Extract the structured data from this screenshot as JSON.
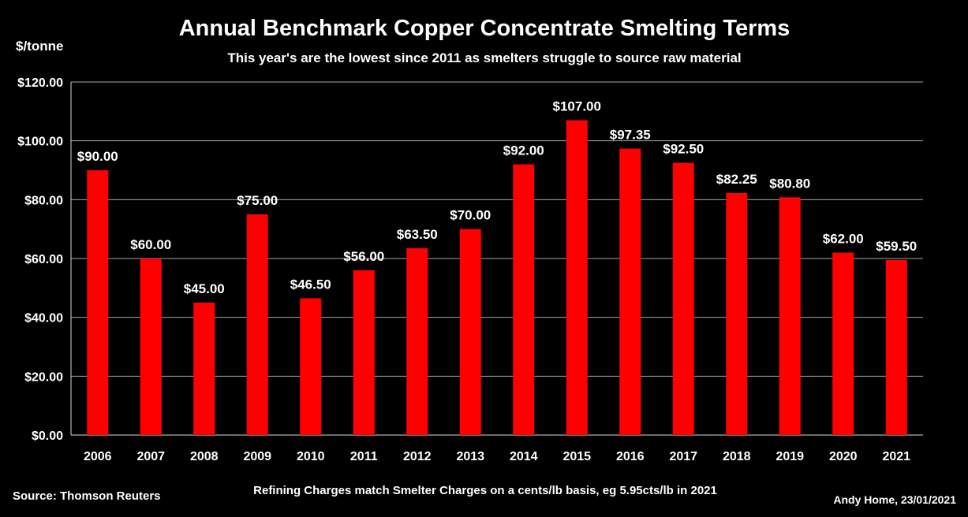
{
  "chart_data": {
    "type": "bar",
    "title": "Annual Benchmark Copper Concentrate Smelting Terms",
    "subtitle": "This year's are the lowest since 2011 as smelters struggle to source raw material",
    "ylabel": "$/tonne",
    "xlabel": "",
    "ylim": [
      0,
      120
    ],
    "ytick_step": 20,
    "ytick_labels": [
      "$0.00",
      "$20.00",
      "$40.00",
      "$60.00",
      "$80.00",
      "$100.00",
      "$120.00"
    ],
    "grid": true,
    "categories": [
      "2006",
      "2007",
      "2008",
      "2009",
      "2010",
      "2011",
      "2012",
      "2013",
      "2014",
      "2015",
      "2016",
      "2017",
      "2018",
      "2019",
      "2020",
      "2021"
    ],
    "values": [
      90.0,
      60.0,
      45.0,
      75.0,
      46.5,
      56.0,
      63.5,
      70.0,
      92.0,
      107.0,
      97.35,
      92.5,
      82.25,
      80.8,
      62.0,
      59.5
    ],
    "data_labels": [
      "$90.00",
      "$60.00",
      "$45.00",
      "$75.00",
      "$46.50",
      "$56.00",
      "$63.50",
      "$70.00",
      "$92.00",
      "$107.00",
      "$97.35",
      "$92.50",
      "$82.25",
      "$80.80",
      "$62.00",
      "$59.50"
    ],
    "bar_color": "#ff0000",
    "background_color": "#000000",
    "gridline_color": "#a6a6a6",
    "annotations": {
      "source": "Source: Thomson Reuters",
      "note": "Refining Charges match Smelter Charges on a cents/lb basis, eg 5.95cts/lb in 2021",
      "author": "Andy Home, 23/01/2021"
    }
  }
}
